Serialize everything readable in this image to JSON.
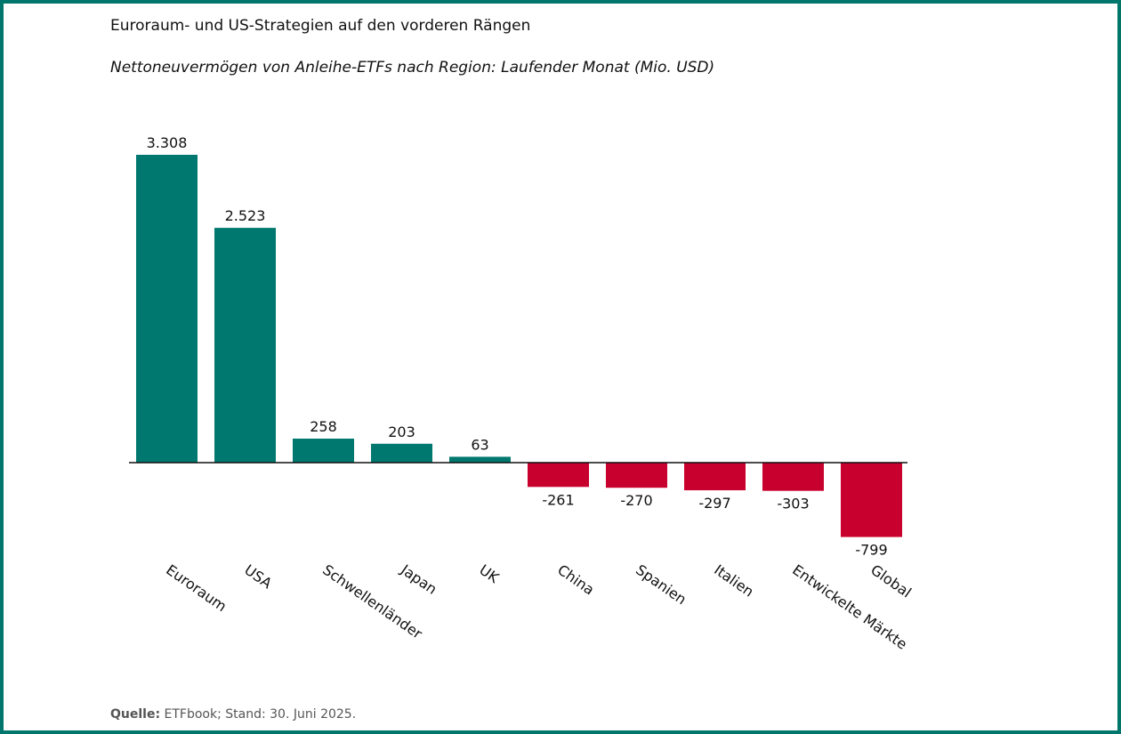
{
  "title": "Euroraum- und US-Strategien auf den vorderen Rängen",
  "subtitle": "Nettoneuvermögen von Anleihe-ETFs nach Region: Laufender Monat (Mio. USD)",
  "footer": {
    "source_label": "Quelle:",
    "source_text": "ETFbook; Stand: 30. Juni 2025."
  },
  "colors": {
    "positive": "#00786f",
    "negative": "#c8002d",
    "border": "#00766c"
  },
  "chart_data": {
    "type": "bar",
    "title": "Nettoneuvermögen von Anleihe-ETFs nach Region: Laufender Monat (Mio. USD)",
    "categories": [
      "Euroraum",
      "USA",
      "Schwellenländer",
      "Japan",
      "UK",
      "China",
      "Spanien",
      "Italien",
      "Entwickelte Märkte",
      "Global"
    ],
    "values": [
      3308,
      2523,
      258,
      203,
      63,
      -261,
      -270,
      -297,
      -303,
      -799
    ],
    "data_labels": [
      "3.308",
      "2.523",
      "258",
      "203",
      "63",
      "-261",
      "-270",
      "-297",
      "-303",
      "-799"
    ],
    "xlabel": "",
    "ylabel": "",
    "grid": false,
    "legend": "none"
  }
}
